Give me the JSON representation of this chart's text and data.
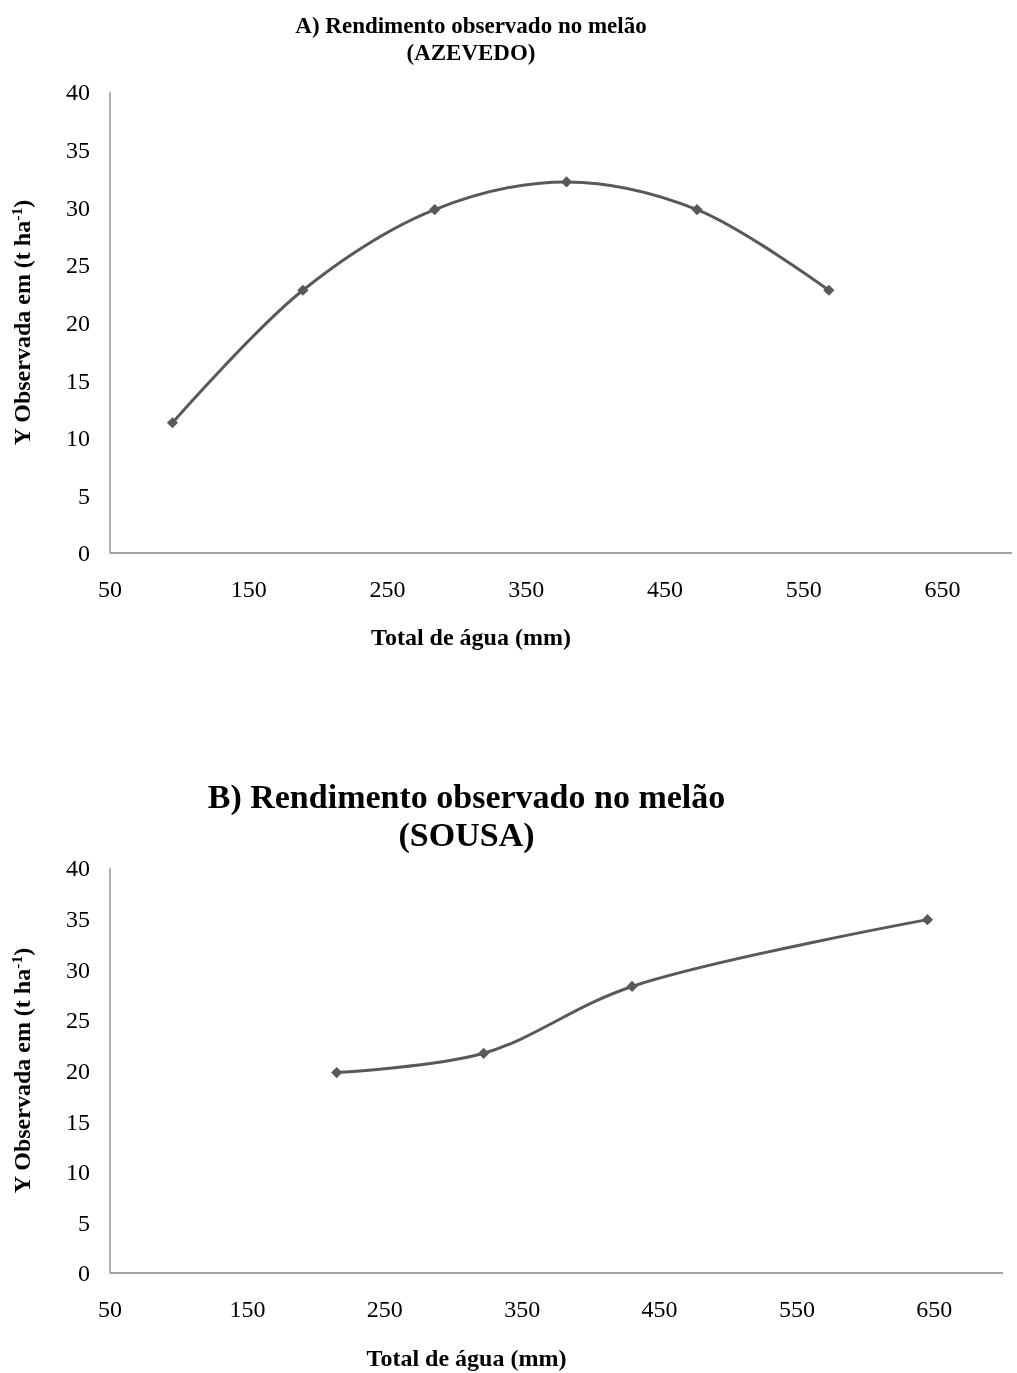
{
  "chart_data": [
    {
      "type": "line",
      "title": "A) Rendimento observado no melão\n(AZEVEDO)",
      "xlabel": "Total de água (mm)",
      "ylabel": "Y Observada em (t ha$^{-1}$)",
      "x": [
        95,
        189,
        284,
        379,
        473,
        568
      ],
      "series": [
        {
          "color": "#595959",
          "values": [
            11.3,
            22.8,
            29.8,
            32.2,
            29.8,
            22.8
          ]
        }
      ],
      "xlim": [
        50,
        700
      ],
      "xticks": [
        50,
        150,
        250,
        350,
        450,
        550,
        650
      ],
      "ylim": [
        0,
        40
      ],
      "yticks": [
        0,
        5,
        10,
        15,
        20,
        25,
        30,
        35,
        40
      ],
      "grid": false,
      "marker": "diamond",
      "line_style": "solid"
    },
    {
      "type": "line",
      "title": "B) Rendimento observado no melão\n(SOUSA)",
      "xlabel": "Total de água (mm)",
      "ylabel": "Y Observada em (t ha$^{-1}$)",
      "x": [
        215,
        322,
        430,
        645
      ],
      "series": [
        {
          "color": "#595959",
          "values": [
            19.8,
            21.7,
            28.3,
            34.9
          ]
        }
      ],
      "xlim": [
        50,
        700
      ],
      "xticks": [
        50,
        150,
        250,
        350,
        450,
        550,
        650
      ],
      "ylim": [
        0,
        40
      ],
      "yticks": [
        0,
        5,
        10,
        15,
        20,
        25,
        30,
        35,
        40
      ],
      "grid": false,
      "marker": "diamond",
      "line_style": "solid"
    }
  ]
}
